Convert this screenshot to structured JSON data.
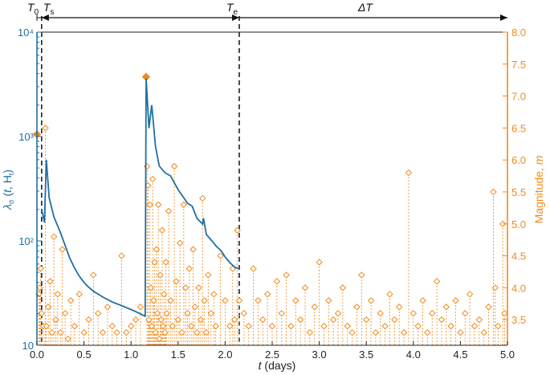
{
  "chart_data": {
    "type": "scatter",
    "x_range": [
      0.0,
      5.0
    ],
    "left_ylim": [
      10,
      10000
    ],
    "left_scale": "log",
    "right_ylim": [
      3.1,
      8.0
    ],
    "xlabel": "t (days)",
    "left_ylabel": "λ_σ (t, H_t)",
    "right_ylabel": "Magnitude, m",
    "x_ticks": [
      "0.0",
      "0.5",
      "1.0",
      "1.5",
      "2.0",
      "2.5",
      "3.0",
      "3.5",
      "4.0",
      "4.5",
      "5.0"
    ],
    "x_tick_values": [
      0,
      0.5,
      1,
      1.5,
      2,
      2.5,
      3,
      3.5,
      4,
      4.5,
      5
    ],
    "left_ticks": [
      "10",
      "10²",
      "10³",
      "10⁴"
    ],
    "left_tick_values": [
      10,
      100,
      1000,
      10000
    ],
    "right_ticks": [
      "3.5",
      "4.0",
      "4.5",
      "5.0",
      "5.5",
      "6.0",
      "6.5",
      "7.0",
      "7.5",
      "8.0"
    ],
    "right_tick_values": [
      3.5,
      4.0,
      4.5,
      5.0,
      5.5,
      6.0,
      6.5,
      7.0,
      7.5,
      8.0
    ],
    "annotations": {
      "T0": "T",
      "T0_sub": "0",
      "Ts": "T",
      "Ts_sub": "s",
      "Te": "T",
      "Te_sub": "e",
      "DeltaT": "ΔT"
    },
    "vlines": {
      "Ts": 0.05,
      "Te": 2.15
    },
    "colors": {
      "intensity": "#1f6fa3",
      "magnitude": "#f08a1c"
    },
    "mainshocks": [
      {
        "t": 0.0,
        "m": 6.4
      },
      {
        "t": 1.16,
        "m": 7.3
      }
    ],
    "intensity_series": [
      [
        0.05,
        200
      ],
      [
        0.08,
        150
      ],
      [
        0.1,
        600
      ],
      [
        0.13,
        260
      ],
      [
        0.18,
        170
      ],
      [
        0.25,
        120
      ],
      [
        0.3,
        90
      ],
      [
        0.35,
        68
      ],
      [
        0.4,
        55
      ],
      [
        0.45,
        46
      ],
      [
        0.5,
        40
      ],
      [
        0.55,
        36
      ],
      [
        0.6,
        33
      ],
      [
        0.7,
        29
      ],
      [
        0.8,
        26
      ],
      [
        0.9,
        24
      ],
      [
        1.0,
        22
      ],
      [
        1.05,
        21
      ],
      [
        1.1,
        20
      ],
      [
        1.15,
        19
      ],
      [
        1.16,
        3600
      ],
      [
        1.19,
        1200
      ],
      [
        1.22,
        2000
      ],
      [
        1.26,
        800
      ],
      [
        1.3,
        520
      ],
      [
        1.36,
        450
      ],
      [
        1.42,
        420
      ],
      [
        1.5,
        310
      ],
      [
        1.56,
        260
      ],
      [
        1.6,
        230
      ],
      [
        1.65,
        215
      ],
      [
        1.7,
        165
      ],
      [
        1.76,
        145
      ],
      [
        1.77,
        165
      ],
      [
        1.8,
        115
      ],
      [
        1.86,
        100
      ],
      [
        1.9,
        90
      ],
      [
        1.96,
        80
      ],
      [
        2.0,
        70
      ],
      [
        2.05,
        62
      ],
      [
        2.1,
        56
      ],
      [
        2.15,
        54
      ]
    ],
    "aftershocks": [
      [
        0.02,
        3.9
      ],
      [
        0.03,
        4.0
      ],
      [
        0.04,
        4.3
      ],
      [
        0.05,
        3.6
      ],
      [
        0.07,
        3.4
      ],
      [
        0.09,
        6.5
      ],
      [
        0.1,
        3.4
      ],
      [
        0.12,
        3.7
      ],
      [
        0.14,
        4.1
      ],
      [
        0.16,
        3.3
      ],
      [
        0.18,
        4.8
      ],
      [
        0.2,
        3.5
      ],
      [
        0.22,
        3.9
      ],
      [
        0.25,
        3.3
      ],
      [
        0.27,
        4.6
      ],
      [
        0.3,
        3.6
      ],
      [
        0.33,
        3.2
      ],
      [
        0.36,
        3.8
      ],
      [
        0.4,
        3.4
      ],
      [
        0.45,
        3.9
      ],
      [
        0.5,
        3.3
      ],
      [
        0.55,
        3.5
      ],
      [
        0.6,
        4.2
      ],
      [
        0.65,
        3.6
      ],
      [
        0.7,
        3.3
      ],
      [
        0.75,
        3.7
      ],
      [
        0.8,
        3.4
      ],
      [
        0.85,
        3.3
      ],
      [
        0.9,
        4.5
      ],
      [
        0.95,
        3.3
      ],
      [
        1.0,
        3.4
      ],
      [
        1.05,
        3.5
      ],
      [
        1.1,
        3.7
      ],
      [
        1.17,
        5.9
      ],
      [
        1.18,
        5.6
      ],
      [
        1.19,
        3.5
      ],
      [
        1.2,
        5.3
      ],
      [
        1.21,
        4.0
      ],
      [
        1.22,
        3.4
      ],
      [
        1.23,
        5.7
      ],
      [
        1.24,
        3.8
      ],
      [
        1.25,
        4.4
      ],
      [
        1.26,
        3.3
      ],
      [
        1.27,
        4.6
      ],
      [
        1.28,
        3.6
      ],
      [
        1.29,
        5.3
      ],
      [
        1.3,
        3.2
      ],
      [
        1.31,
        4.2
      ],
      [
        1.32,
        3.5
      ],
      [
        1.33,
        4.9
      ],
      [
        1.34,
        3.4
      ],
      [
        1.35,
        3.9
      ],
      [
        1.36,
        3.3
      ],
      [
        1.37,
        4.4
      ],
      [
        1.38,
        3.6
      ],
      [
        1.4,
        5.2
      ],
      [
        1.42,
        3.8
      ],
      [
        1.44,
        3.4
      ],
      [
        1.46,
        5.9
      ],
      [
        1.48,
        4.1
      ],
      [
        1.5,
        3.5
      ],
      [
        1.52,
        4.7
      ],
      [
        1.54,
        3.3
      ],
      [
        1.56,
        5.3
      ],
      [
        1.58,
        4.0
      ],
      [
        1.6,
        3.6
      ],
      [
        1.62,
        4.3
      ],
      [
        1.64,
        3.4
      ],
      [
        1.66,
        4.6
      ],
      [
        1.68,
        3.7
      ],
      [
        1.7,
        3.3
      ],
      [
        1.72,
        4.0
      ],
      [
        1.74,
        3.5
      ],
      [
        1.76,
        5.4
      ],
      [
        1.78,
        3.8
      ],
      [
        1.8,
        3.3
      ],
      [
        1.82,
        4.2
      ],
      [
        1.85,
        3.6
      ],
      [
        1.88,
        3.9
      ],
      [
        1.9,
        3.4
      ],
      [
        1.95,
        4.5
      ],
      [
        2.0,
        3.8
      ],
      [
        2.05,
        3.4
      ],
      [
        2.08,
        4.3
      ],
      [
        2.1,
        3.5
      ],
      [
        2.13,
        4.9
      ],
      [
        2.15,
        3.8
      ],
      [
        2.2,
        3.6
      ],
      [
        2.25,
        3.4
      ],
      [
        2.3,
        4.3
      ],
      [
        2.35,
        3.8
      ],
      [
        2.4,
        3.5
      ],
      [
        2.45,
        3.9
      ],
      [
        2.5,
        3.4
      ],
      [
        2.55,
        4.1
      ],
      [
        2.6,
        3.6
      ],
      [
        2.65,
        4.2
      ],
      [
        2.7,
        3.4
      ],
      [
        2.75,
        3.8
      ],
      [
        2.8,
        3.5
      ],
      [
        2.85,
        4.0
      ],
      [
        2.9,
        3.3
      ],
      [
        2.95,
        3.7
      ],
      [
        3.0,
        4.4
      ],
      [
        3.05,
        3.4
      ],
      [
        3.1,
        3.8
      ],
      [
        3.15,
        3.5
      ],
      [
        3.2,
        3.6
      ],
      [
        3.25,
        4.0
      ],
      [
        3.3,
        3.4
      ],
      [
        3.35,
        3.3
      ],
      [
        3.4,
        3.7
      ],
      [
        3.45,
        4.2
      ],
      [
        3.5,
        3.5
      ],
      [
        3.55,
        3.8
      ],
      [
        3.6,
        3.3
      ],
      [
        3.65,
        3.6
      ],
      [
        3.7,
        3.4
      ],
      [
        3.75,
        3.9
      ],
      [
        3.8,
        3.5
      ],
      [
        3.85,
        3.7
      ],
      [
        3.9,
        3.3
      ],
      [
        3.95,
        5.8
      ],
      [
        4.0,
        3.6
      ],
      [
        4.05,
        3.4
      ],
      [
        4.1,
        3.8
      ],
      [
        4.15,
        3.3
      ],
      [
        4.2,
        3.6
      ],
      [
        4.25,
        4.1
      ],
      [
        4.3,
        3.5
      ],
      [
        4.35,
        3.7
      ],
      [
        4.4,
        3.4
      ],
      [
        4.45,
        3.8
      ],
      [
        4.5,
        3.3
      ],
      [
        4.55,
        3.6
      ],
      [
        4.6,
        3.9
      ],
      [
        4.65,
        3.4
      ],
      [
        4.7,
        3.5
      ],
      [
        4.75,
        3.3
      ],
      [
        4.8,
        3.7
      ],
      [
        4.85,
        5.5
      ],
      [
        4.87,
        4.0
      ],
      [
        4.9,
        3.4
      ],
      [
        4.95,
        5.0
      ],
      [
        4.97,
        3.6
      ]
    ]
  }
}
